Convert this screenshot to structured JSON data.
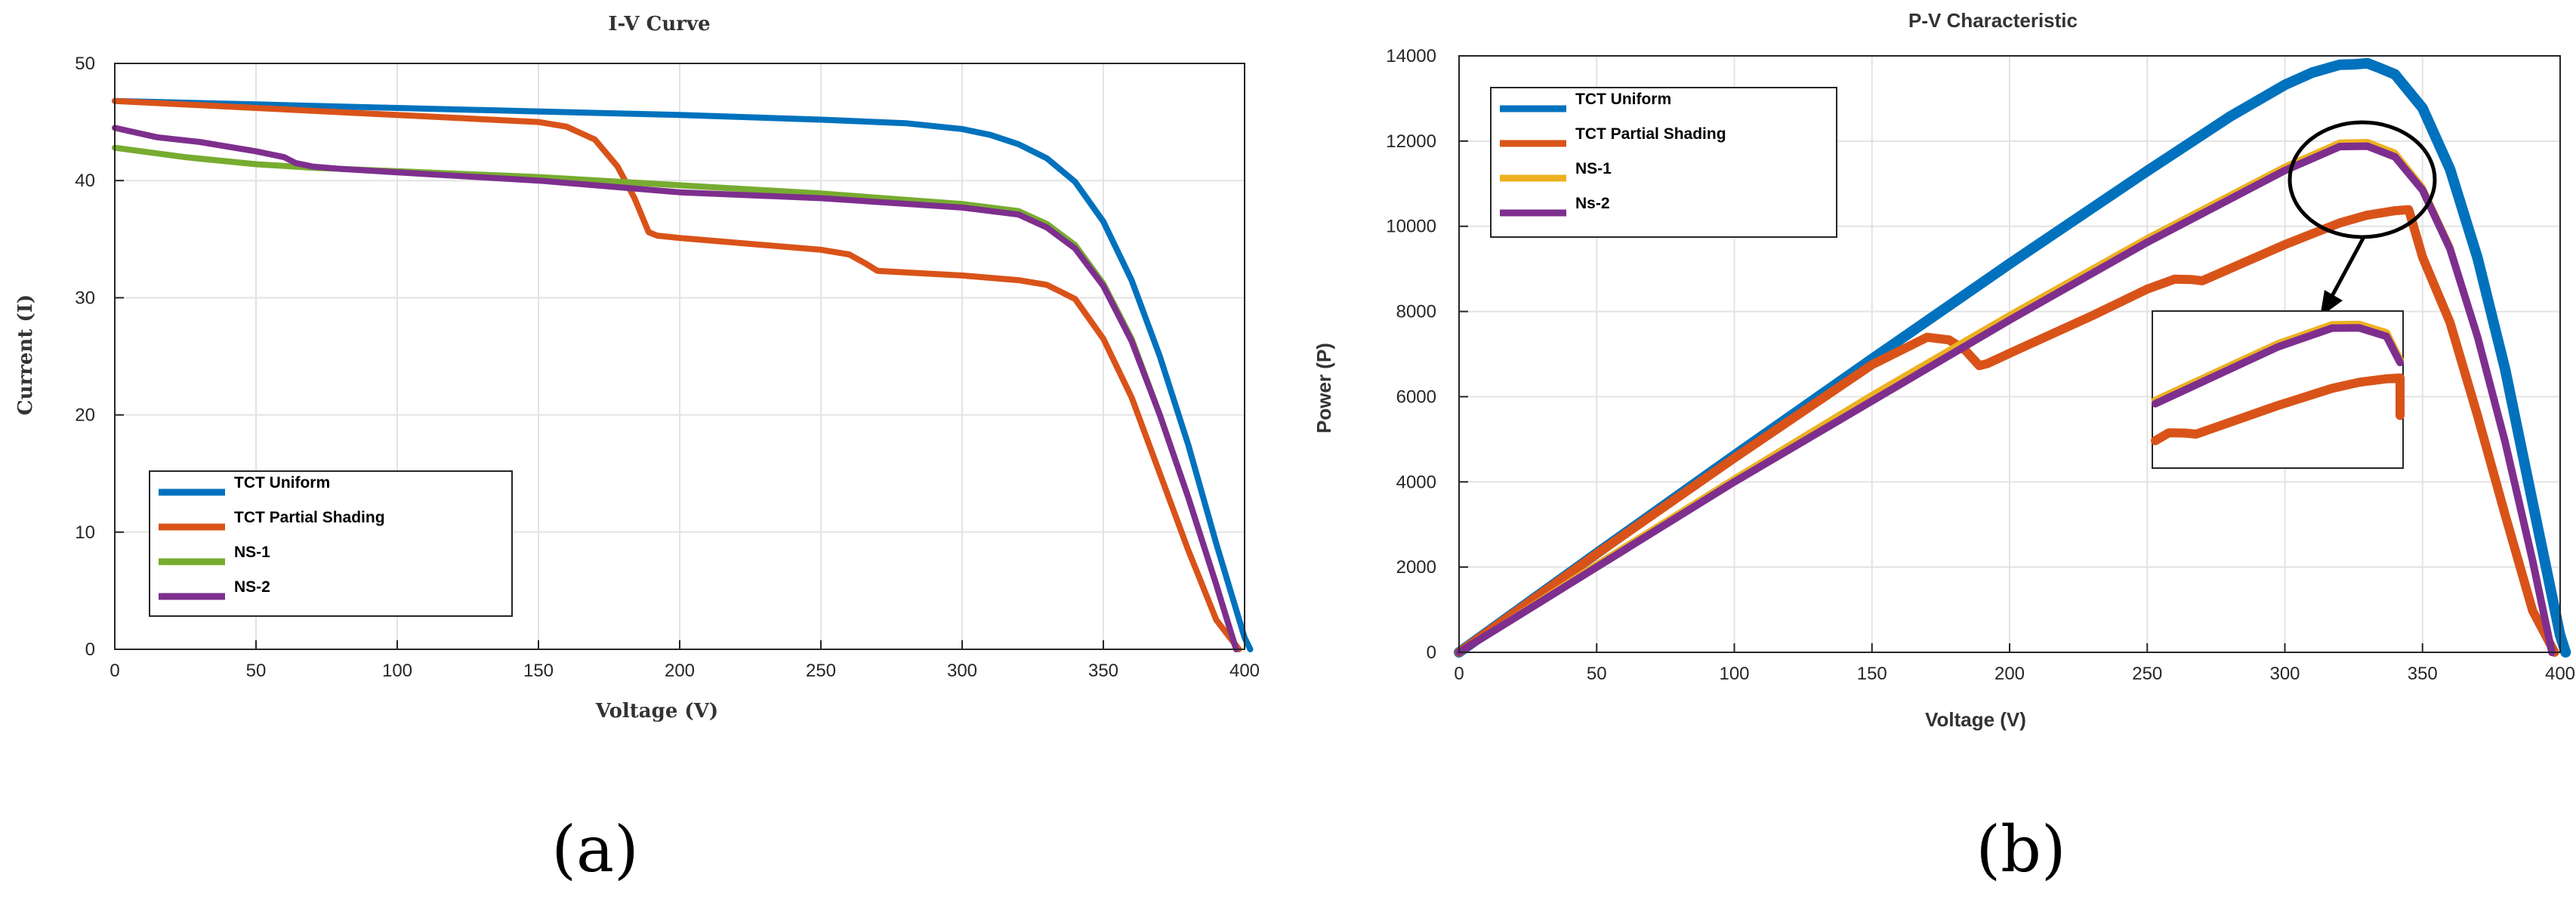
{
  "panels": [
    {
      "label": "(a)"
    },
    {
      "label": "(b)"
    }
  ],
  "chart_data": [
    {
      "type": "line",
      "title": "I-V Curve",
      "xlabel": "Voltage (V)",
      "ylabel": "Current (I)",
      "xlim": [
        0,
        400
      ],
      "ylim": [
        0,
        50
      ],
      "xticks": [
        0,
        50,
        100,
        150,
        200,
        250,
        300,
        350,
        400
      ],
      "yticks": [
        0,
        10,
        20,
        30,
        40,
        50
      ],
      "grid": true,
      "legend_position": "bottom-left",
      "series": [
        {
          "name": "TCT Uniform",
          "color": "#0072BD",
          "x": [
            0,
            50,
            100,
            150,
            200,
            250,
            280,
            300,
            310,
            320,
            330,
            340,
            350,
            360,
            370,
            380,
            390,
            400,
            402
          ],
          "y": [
            46.8,
            46.5,
            46.2,
            45.9,
            45.6,
            45.2,
            44.9,
            44.4,
            43.9,
            43.1,
            41.9,
            39.9,
            36.5,
            31.5,
            25.0,
            17.5,
            9.0,
            1.0,
            0
          ]
        },
        {
          "name": "TCT Partial Shading",
          "color": "#D95319",
          "x": [
            0,
            50,
            100,
            150,
            160,
            170,
            178,
            184,
            189,
            192,
            200,
            250,
            260,
            266,
            270,
            300,
            320,
            330,
            340,
            350,
            360,
            370,
            380,
            390,
            398
          ],
          "y": [
            46.8,
            46.2,
            45.6,
            45.0,
            44.6,
            43.5,
            41.2,
            38.5,
            35.6,
            35.3,
            35.1,
            34.1,
            33.7,
            32.9,
            32.3,
            31.9,
            31.5,
            31.1,
            29.9,
            26.5,
            21.5,
            15.0,
            8.5,
            2.5,
            0
          ]
        },
        {
          "name": "NS-1",
          "color": "#77AC30",
          "x": [
            0,
            25,
            50,
            70,
            100,
            150,
            200,
            250,
            300,
            320,
            330,
            340,
            350,
            360,
            370,
            380,
            390,
            397
          ],
          "y": [
            42.8,
            42.0,
            41.4,
            41.1,
            40.8,
            40.3,
            39.6,
            38.9,
            38.0,
            37.4,
            36.3,
            34.5,
            31.2,
            26.5,
            20.0,
            13.0,
            5.5,
            0
          ]
        },
        {
          "name": "NS-2",
          "color": "#7E2F8E",
          "x": [
            0,
            15,
            30,
            50,
            60,
            64,
            70,
            80,
            100,
            150,
            170,
            200,
            250,
            300,
            320,
            330,
            340,
            350,
            360,
            370,
            380,
            390,
            397
          ],
          "y": [
            44.5,
            43.7,
            43.3,
            42.5,
            42.0,
            41.5,
            41.2,
            41.0,
            40.7,
            40.0,
            39.6,
            39.0,
            38.5,
            37.7,
            37.1,
            36.0,
            34.2,
            31.0,
            26.3,
            20.0,
            13.0,
            5.5,
            0
          ]
        }
      ]
    },
    {
      "type": "line",
      "title": "P-V Characteristic",
      "xlabel": "Voltage (V)",
      "ylabel": "Power (P)",
      "xlim": [
        0,
        400
      ],
      "ylim": [
        0,
        14000
      ],
      "xticks": [
        0,
        50,
        100,
        150,
        200,
        250,
        300,
        350,
        400
      ],
      "yticks": [
        0,
        2000,
        4000,
        6000,
        8000,
        10000,
        12000,
        14000
      ],
      "grid": true,
      "legend_position": "top-left",
      "zoom_inset": {
        "x_range": [
          255,
          345
        ],
        "note": "magnified view of peak region"
      },
      "series": [
        {
          "name": "TCT Uniform",
          "color": "#0072BD",
          "x": [
            0,
            50,
            100,
            150,
            200,
            250,
            280,
            300,
            310,
            320,
            325,
            330,
            335,
            340,
            350,
            360,
            370,
            380,
            390,
            400,
            402
          ],
          "y": [
            0,
            2325,
            4620,
            6885,
            9120,
            11300,
            12572,
            13320,
            13609,
            13792,
            13800,
            13827,
            13700,
            13566,
            12775,
            11340,
            9250,
            6650,
            3510,
            400,
            0
          ]
        },
        {
          "name": "TCT Partial Shading",
          "color": "#D95319",
          "x": [
            0,
            50,
            100,
            150,
            170,
            178,
            184,
            189,
            192,
            200,
            230,
            250,
            260,
            266,
            270,
            300,
            320,
            330,
            340,
            345,
            350,
            360,
            370,
            380,
            390,
            398
          ],
          "y": [
            0,
            2310,
            4560,
            6750,
            7395,
            7334,
            7084,
            6728,
            6778,
            7020,
            7900,
            8525,
            8760,
            8751,
            8721,
            9570,
            10080,
            10263,
            10366,
            10390,
            9275,
            7740,
            5550,
            3230,
            975,
            0
          ]
        },
        {
          "name": "NS-1",
          "color": "#EDB120",
          "x": [
            0,
            50,
            100,
            150,
            200,
            250,
            300,
            320,
            330,
            340,
            350,
            360,
            370,
            380,
            390,
            397
          ],
          "y": [
            0,
            2070,
            4080,
            6045,
            7920,
            9725,
            11400,
            11968,
            11979,
            11730,
            10920,
            9540,
            7400,
            4940,
            2145,
            0
          ]
        },
        {
          "name": "Ns-2",
          "color": "#7E2F8E",
          "x": [
            0,
            50,
            100,
            150,
            200,
            250,
            300,
            320,
            330,
            340,
            350,
            360,
            370,
            380,
            390,
            397
          ],
          "y": [
            0,
            2000,
            4000,
            5900,
            7800,
            9625,
            11310,
            11872,
            11880,
            11628,
            10850,
            9468,
            7400,
            4940,
            2145,
            0
          ]
        }
      ]
    }
  ]
}
